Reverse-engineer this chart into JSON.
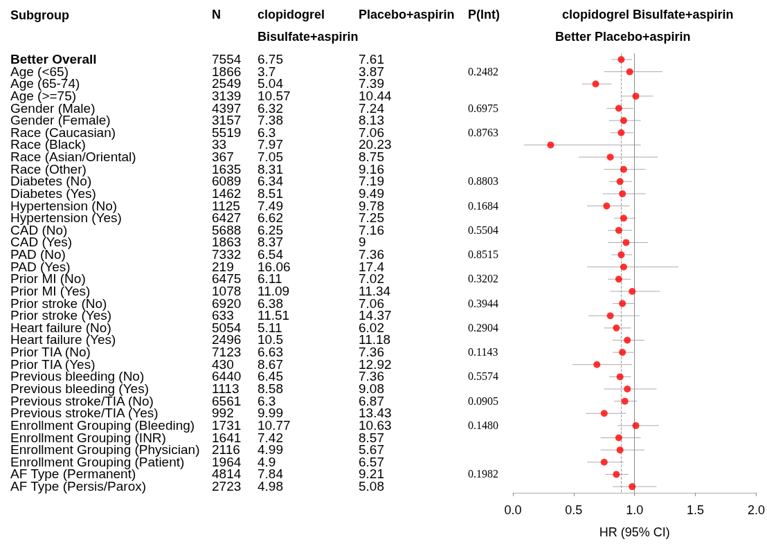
{
  "chart_data": [
    {
      "type": "other",
      "title": "Subgroup",
      "data_labels": true,
      "categories": [
        "Better Overall",
        "Age (<65)",
        "Age (65-74)",
        "Age (>=75)",
        "Gender (Male)",
        "Gender (Female)",
        "Race (Caucasian)",
        "Race (Black)",
        "Race (Asian/Oriental)",
        "Race (Other)",
        "Diabetes (No)",
        "Diabetes (Yes)",
        "Hypertension (No)",
        "Hypertension (Yes)",
        "CAD (No)",
        "CAD (Yes)",
        "PAD (No)",
        "PAD (Yes)",
        "Prior MI (No)",
        "Prior MI (Yes)",
        "Prior stroke (No)",
        "Prior stroke (Yes)",
        "Heart failure (No)",
        "Heart failure (Yes)",
        "Prior TIA (No)",
        "Prior TIA (Yes)",
        "Previous bleeding (No)",
        "Previous bleeding (Yes)",
        "Previous stroke/TIA (No)",
        "Previous stroke/TIA (Yes)",
        "Enrollment Grouping (Bleeding)",
        "Enrollment Grouping (INR)",
        "Enrollment Grouping (Physician)",
        "Enrollment Grouping (Patient)",
        "AF Type (Permanent)",
        "AF Type (Persis/Parox)"
      ],
      "series": [
        {
          "name": "N",
          "values": [
            7554,
            1866,
            2549,
            3139,
            4397,
            3157,
            5519,
            33,
            367,
            1635,
            6089,
            1462,
            1125,
            6427,
            5688,
            1863,
            7332,
            219,
            6475,
            1078,
            6920,
            633,
            5054,
            2496,
            7123,
            430,
            6440,
            1113,
            6561,
            992,
            1731,
            1641,
            2116,
            1964,
            4814,
            2723
          ]
        },
        {
          "name": "clopidogrel Bisulfate+aspirin",
          "values": [
            6.75,
            3.7,
            5.04,
            10.57,
            6.32,
            7.38,
            6.3,
            7.97,
            7.05,
            8.31,
            6.34,
            8.51,
            7.49,
            6.62,
            6.25,
            8.37,
            6.54,
            16.06,
            6.11,
            11.09,
            6.38,
            11.51,
            5.11,
            10.5,
            6.63,
            8.67,
            6.45,
            8.58,
            6.3,
            9.99,
            10.77,
            7.42,
            4.99,
            4.9,
            7.84,
            4.98
          ]
        },
        {
          "name": "Placebo+aspirin",
          "values": [
            7.61,
            3.87,
            7.39,
            10.44,
            7.24,
            8.13,
            7.06,
            20.23,
            8.75,
            9.16,
            7.19,
            9.49,
            9.78,
            7.25,
            7.16,
            9,
            7.36,
            17.4,
            7.02,
            11.34,
            7.06,
            14.37,
            6.02,
            11.18,
            7.36,
            12.92,
            7.36,
            9.08,
            6.87,
            13.43,
            10.63,
            8.57,
            5.67,
            6.57,
            9.21,
            5.08
          ]
        },
        {
          "name": "P(Int)",
          "values": [
            null,
            0.2482,
            null,
            null,
            0.6975,
            null,
            0.8763,
            null,
            null,
            null,
            0.8803,
            null,
            0.1684,
            null,
            0.5504,
            null,
            0.8515,
            null,
            0.3202,
            null,
            0.3944,
            null,
            0.2904,
            null,
            0.1143,
            null,
            0.5574,
            null,
            0.0905,
            null,
            0.148,
            null,
            null,
            null,
            0.1982,
            null
          ],
          "value_labels": [
            null,
            "0.2482",
            null,
            null,
            "0.6975",
            null,
            "0.8763",
            null,
            null,
            null,
            "0.8803",
            null,
            "0.1684",
            null,
            "0.5504",
            null,
            "0.8515",
            null,
            "0.3202",
            null,
            "0.3944",
            null,
            "0.2904",
            null,
            "0.1143",
            null,
            "0.5574",
            null,
            "0.0905",
            null,
            "0.1480",
            null,
            null,
            null,
            "0.1982",
            null
          ]
        }
      ]
    },
    {
      "type": "scatter",
      "orientation": "horizontal",
      "xlabel": "HR (95% CI)",
      "color": "#ff0000",
      "marker": "circle",
      "grid": false,
      "annotations": [
        "clopidogrel Bisulfate+aspirin",
        "Better Placebo+aspirin"
      ],
      "categories": [
        null,
        null,
        null,
        null,
        null,
        null,
        null,
        null,
        null,
        null,
        null,
        null,
        null,
        null,
        null,
        null,
        null,
        null,
        null,
        null,
        null,
        null,
        null,
        null,
        null,
        null,
        null,
        null,
        null,
        null,
        null,
        null,
        null,
        null,
        null,
        null
      ],
      "values": [
        0.89,
        0.96,
        0.68,
        1.01,
        0.87,
        0.91,
        0.89,
        0.31,
        0.8,
        0.91,
        0.88,
        0.9,
        0.77,
        0.91,
        0.87,
        0.93,
        0.89,
        0.91,
        0.87,
        0.98,
        0.9,
        0.8,
        0.85,
        0.94,
        0.9,
        0.69,
        0.88,
        0.94,
        0.92,
        0.75,
        1.01,
        0.87,
        0.88,
        0.75,
        0.85,
        0.98
      ],
      "errors": [
        [
          0.81,
          0.98
        ],
        [
          0.75,
          1.23
        ],
        [
          0.57,
          0.81
        ],
        [
          0.89,
          1.15
        ],
        [
          0.77,
          0.99
        ],
        [
          0.79,
          1.05
        ],
        [
          0.8,
          0.99
        ],
        [
          0.09,
          1.05
        ],
        [
          0.54,
          1.19
        ],
        [
          0.75,
          1.09
        ],
        [
          0.79,
          0.98
        ],
        [
          0.74,
          1.09
        ],
        [
          0.61,
          0.96
        ],
        [
          0.83,
          1.01
        ],
        [
          0.78,
          0.98
        ],
        [
          0.78,
          1.11
        ],
        [
          0.81,
          0.98
        ],
        [
          0.61,
          1.36
        ],
        [
          0.78,
          0.97
        ],
        [
          0.8,
          1.21
        ],
        [
          0.82,
          1.0
        ],
        [
          0.62,
          1.04
        ],
        [
          0.75,
          0.97
        ],
        [
          0.82,
          1.08
        ],
        [
          0.82,
          0.99
        ],
        [
          0.49,
          0.98
        ],
        [
          0.79,
          0.97
        ],
        [
          0.75,
          1.18
        ],
        [
          0.83,
          1.02
        ],
        [
          0.6,
          0.93
        ],
        [
          0.86,
          1.2
        ],
        [
          0.72,
          1.05
        ],
        [
          0.72,
          1.08
        ],
        [
          0.61,
          0.91
        ],
        [
          0.76,
          0.95
        ],
        [
          0.82,
          1.18
        ]
      ],
      "xlim": [
        0,
        2
      ],
      "xticks": [
        {
          "value": 0,
          "label": "0.0"
        },
        0.5,
        {
          "value": 1,
          "label": "1.0"
        },
        1.5,
        {
          "value": 2,
          "label": "2.0"
        }
      ],
      "ref_lines": [
        {
          "axis": "x",
          "value": 1,
          "color": "#888888",
          "line_style": "solid"
        },
        {
          "axis": "x",
          "value": 0.89,
          "color": "#999999",
          "line_style": "dashed"
        }
      ]
    }
  ]
}
